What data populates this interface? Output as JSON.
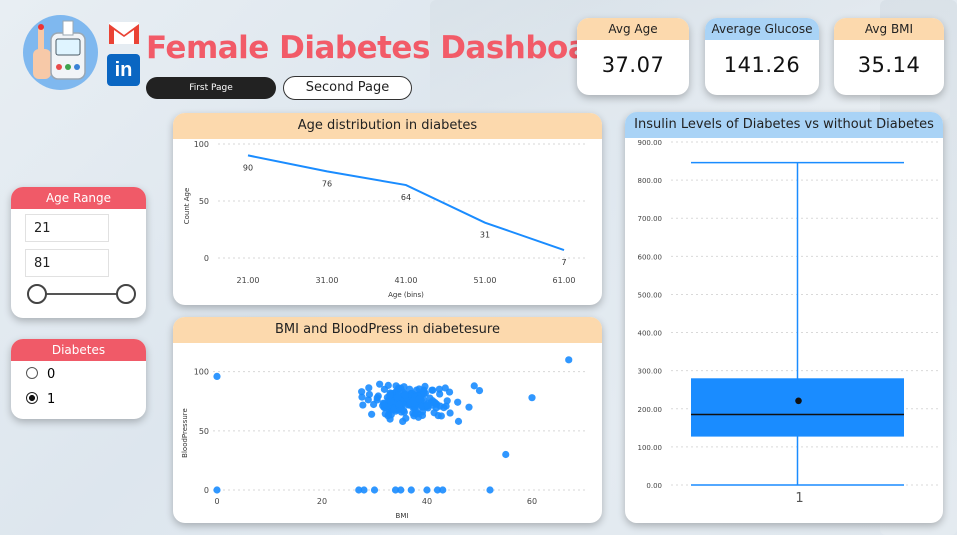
{
  "header": {
    "title": "Female Diabetes Dashboard",
    "nav": [
      {
        "label": "First Page",
        "active": true
      },
      {
        "label": "Second Page",
        "active": false
      }
    ]
  },
  "kpis": [
    {
      "label": "Avg Age",
      "value": "37.07"
    },
    {
      "label": "Average Glucose",
      "value": "141.26"
    },
    {
      "label": "Avg BMI",
      "value": "35.14"
    }
  ],
  "slicers": {
    "age_range": {
      "title": "Age Range",
      "min": "21",
      "max": "81"
    },
    "diabetes": {
      "title": "Diabetes",
      "options": [
        "0",
        "1"
      ],
      "selected": "1"
    }
  },
  "colors": {
    "accent": "#f05a68",
    "series": "#1a8cff",
    "kpi_orange": "#fcd9ad",
    "kpi_blue": "#a9d3f6"
  },
  "chart_data": [
    {
      "type": "line",
      "title": "Age distribution in diabetes",
      "xlabel": "Age (bins)",
      "ylabel": "Count Age",
      "categories": [
        "21.00",
        "31.00",
        "41.00",
        "51.00",
        "61.00"
      ],
      "values": [
        90,
        76,
        64,
        31,
        7
      ],
      "yticks": [
        "0",
        "50",
        "100"
      ],
      "ylim": [
        0,
        100
      ]
    },
    {
      "type": "scatter",
      "title": "BMI and BloodPress in diabetesure",
      "xlabel": "BMI",
      "ylabel": "BloodPressure",
      "xticks": [
        "0",
        "20",
        "40",
        "60"
      ],
      "yticks": [
        "0",
        "50",
        "100"
      ],
      "xlim": [
        0,
        68
      ],
      "ylim": [
        0,
        120
      ]
    },
    {
      "type": "box",
      "title": "Insulin Levels of Diabetes vs without Diabetes",
      "category": "1",
      "min": 0,
      "q1": 127,
      "median": 185,
      "mean": 221,
      "q3": 280,
      "max": 846,
      "yticks": [
        "0.00",
        "100.00",
        "200.00",
        "300.00",
        "400.00",
        "500.00",
        "600.00",
        "700.00",
        "800.00",
        "900.00"
      ],
      "ylim": [
        0,
        900
      ]
    }
  ]
}
